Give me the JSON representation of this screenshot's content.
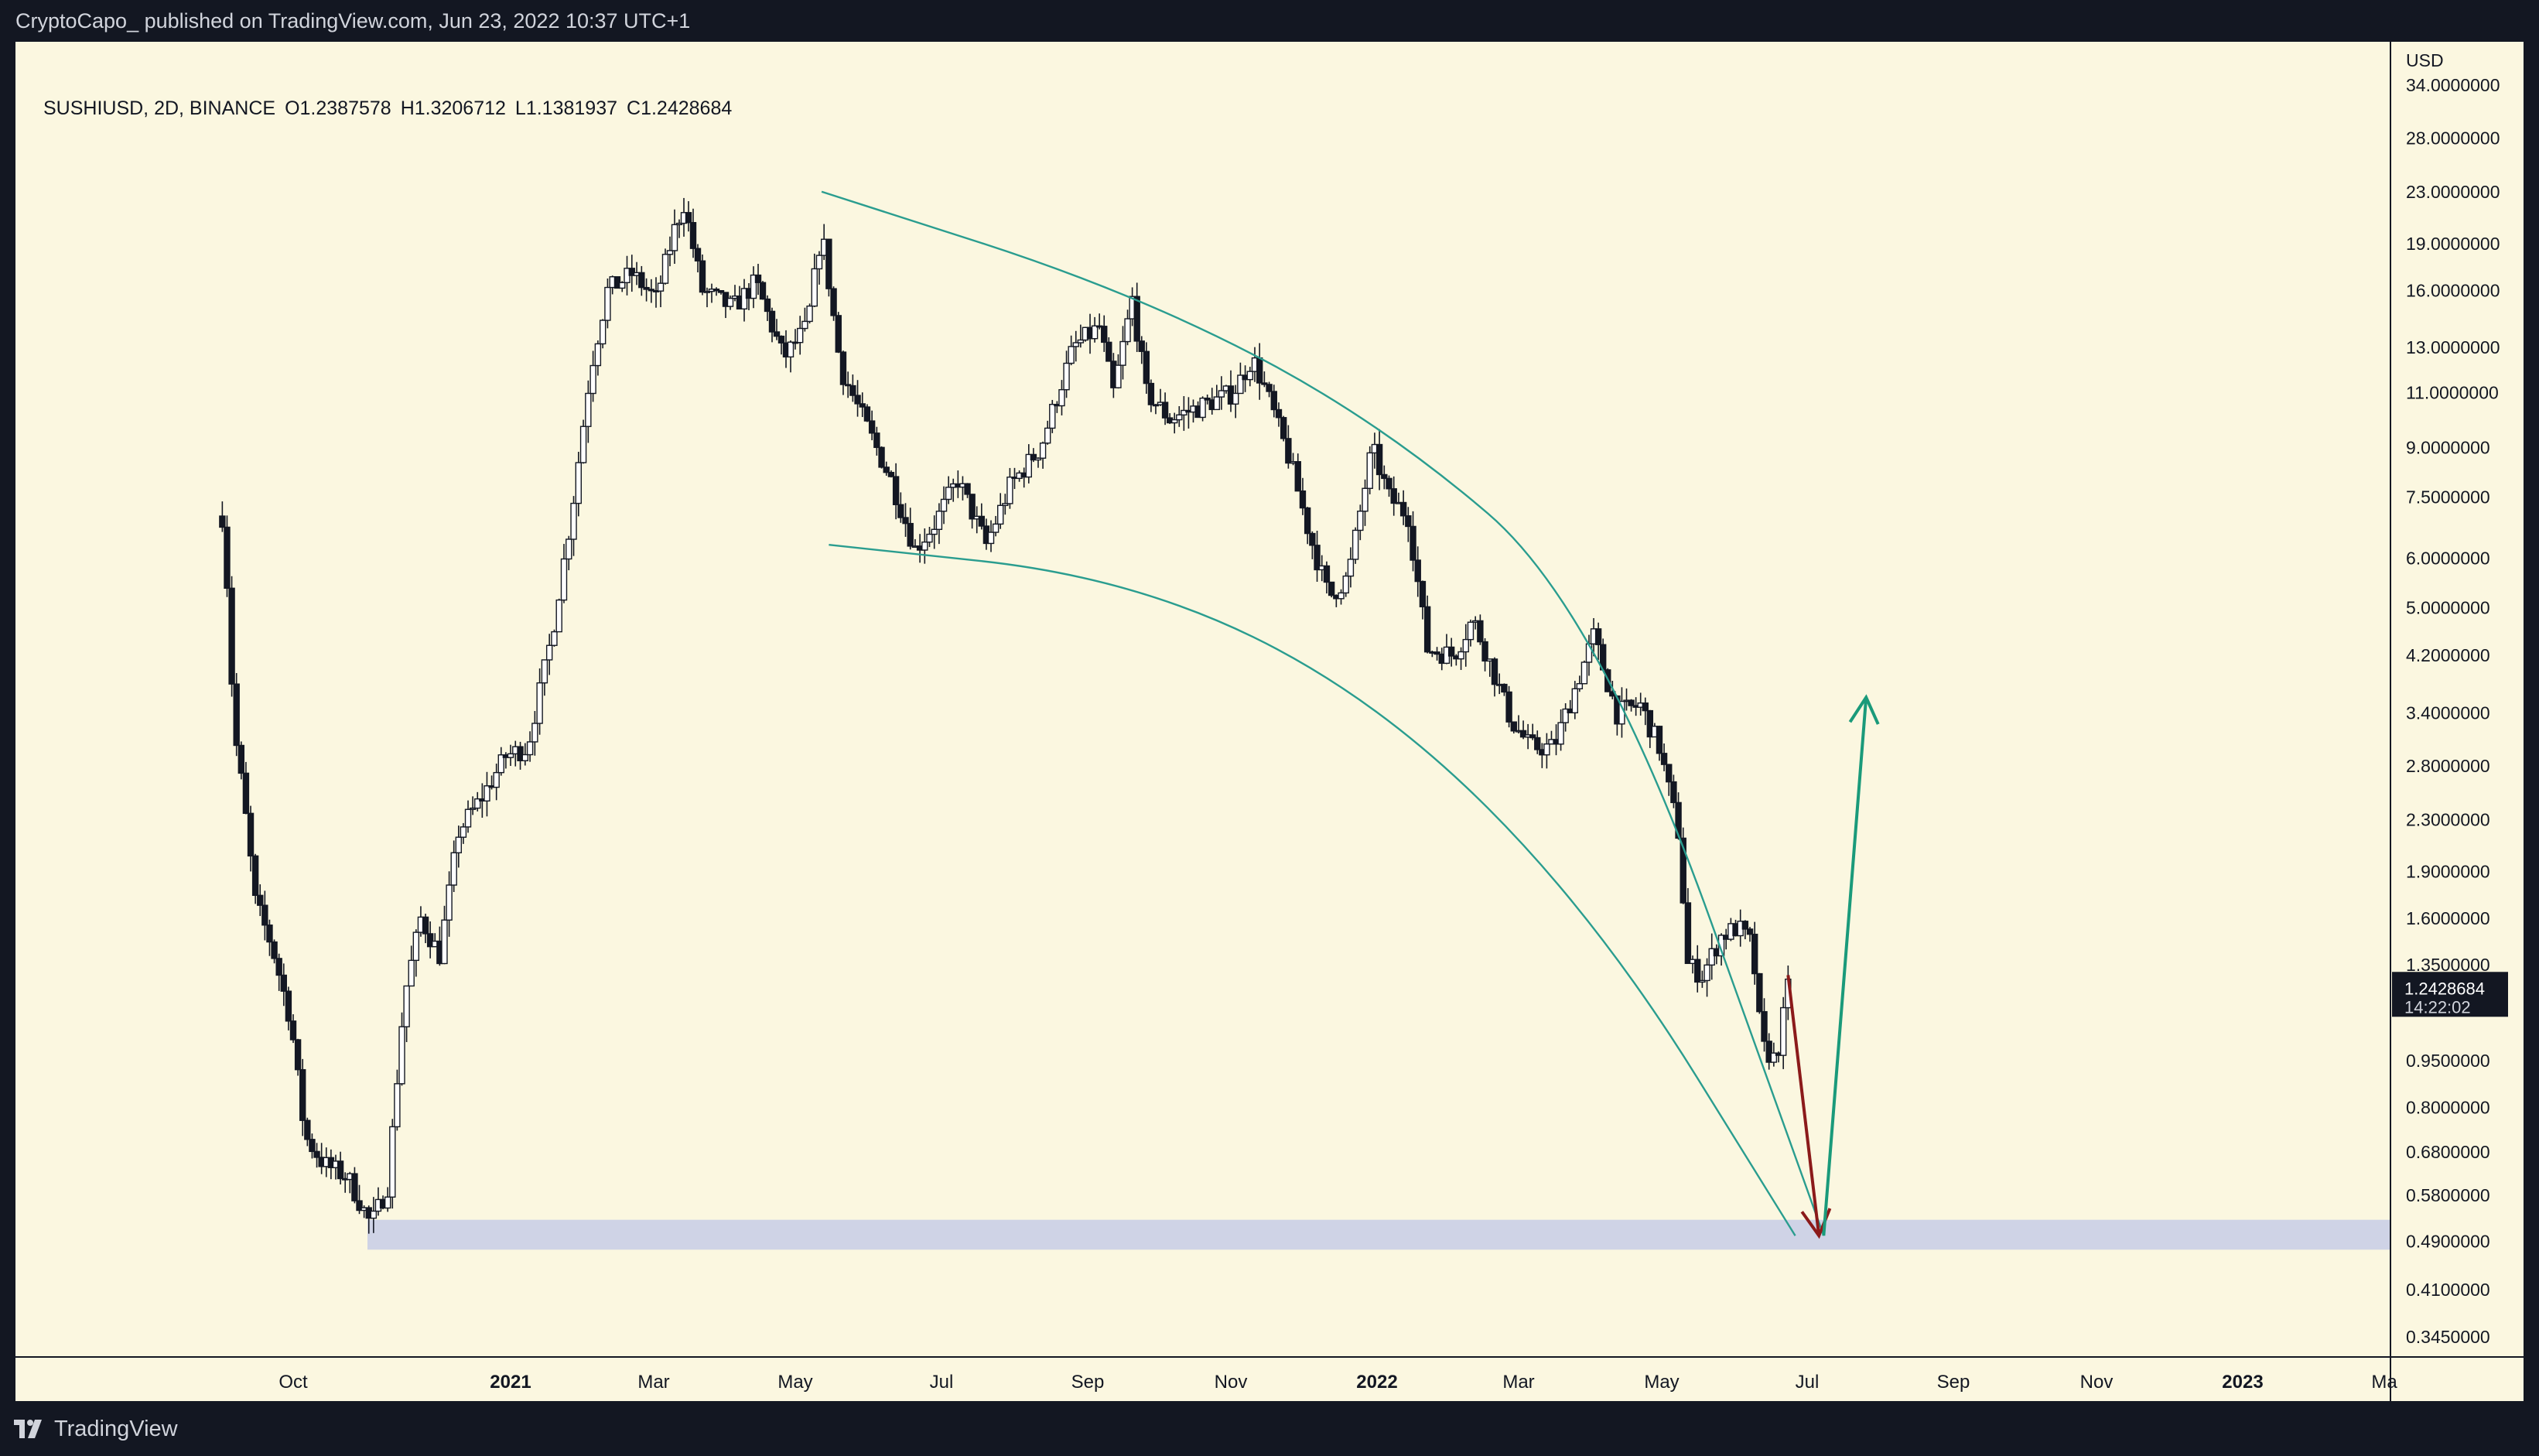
{
  "header": {
    "published_text": "CryptoCapo_ published on TradingView.com, Jun 23, 2022 10:37 UTC+1"
  },
  "legend": {
    "symbol": "SUSHIUSD, 2D, BINANCE",
    "open": "O1.2387578",
    "high": "H1.3206712",
    "low": "L1.1381937",
    "close": "C1.2428684"
  },
  "footer": {
    "brand": "TradingView",
    "logo_icon": "tradingview-logo-icon"
  },
  "colors": {
    "background": "#fbf7e0",
    "frame": "#131722",
    "candle_up": "#ffffff",
    "candle_down": "#131722",
    "channel": "#2a9d8f",
    "support_zone": "#c7cde6",
    "arrow_down": "#8b1a1a",
    "arrow_up": "#1a9a7a"
  },
  "chart_data": {
    "type": "candlestick",
    "symbol": "SUSHIUSD",
    "interval": "2D",
    "exchange": "BINANCE",
    "scale": "log",
    "currency": "USD",
    "y_ticks": [
      "34.0000000",
      "28.0000000",
      "23.0000000",
      "19.0000000",
      "16.0000000",
      "13.0000000",
      "11.0000000",
      "9.0000000",
      "7.5000000",
      "6.0000000",
      "5.0000000",
      "4.2000000",
      "3.4000000",
      "2.8000000",
      "2.3000000",
      "1.9000000",
      "1.6000000",
      "1.3500000",
      "0.9500000",
      "0.8000000",
      "0.6800000",
      "0.5800000",
      "0.4900000",
      "0.4100000",
      "0.3450000"
    ],
    "x_ticks": [
      {
        "label": "Oct",
        "bold": false
      },
      {
        "label": "2021",
        "bold": true
      },
      {
        "label": "Mar",
        "bold": false
      },
      {
        "label": "May",
        "bold": false
      },
      {
        "label": "Jul",
        "bold": false
      },
      {
        "label": "Sep",
        "bold": false
      },
      {
        "label": "Nov",
        "bold": false
      },
      {
        "label": "2022",
        "bold": true
      },
      {
        "label": "Mar",
        "bold": false
      },
      {
        "label": "May",
        "bold": false
      },
      {
        "label": "Jul",
        "bold": false
      },
      {
        "label": "Sep",
        "bold": false
      },
      {
        "label": "Nov",
        "bold": false
      },
      {
        "label": "2023",
        "bold": true
      },
      {
        "label": "Ma",
        "bold": false
      }
    ],
    "last_price": {
      "value": "1.2428684",
      "countdown": "14:22:02"
    },
    "price_path": [
      [
        "2020-09-01",
        7.0
      ],
      [
        "2020-09-03",
        5.5
      ],
      [
        "2020-09-06",
        3.2
      ],
      [
        "2020-09-10",
        2.5
      ],
      [
        "2020-09-15",
        1.7
      ],
      [
        "2020-09-22",
        1.45
      ],
      [
        "2020-09-30",
        1.1
      ],
      [
        "2020-10-06",
        0.72
      ],
      [
        "2020-10-14",
        0.65
      ],
      [
        "2020-10-24",
        0.62
      ],
      [
        "2020-11-03",
        0.52
      ],
      [
        "2020-11-10",
        0.6
      ],
      [
        "2020-11-17",
        1.2
      ],
      [
        "2020-11-24",
        1.6
      ],
      [
        "2020-12-02",
        1.4
      ],
      [
        "2020-12-10",
        2.2
      ],
      [
        "2020-12-20",
        2.5
      ],
      [
        "2020-12-30",
        2.9
      ],
      [
        "2021-01-08",
        3.0
      ],
      [
        "2021-01-18",
        4.5
      ],
      [
        "2021-01-26",
        7.0
      ],
      [
        "2021-02-03",
        12.0
      ],
      [
        "2021-02-10",
        16.0
      ],
      [
        "2021-02-20",
        17.0
      ],
      [
        "2021-03-02",
        15.5
      ],
      [
        "2021-03-10",
        20.0
      ],
      [
        "2021-03-14",
        22.0
      ],
      [
        "2021-03-22",
        16.0
      ],
      [
        "2021-04-04",
        15.0
      ],
      [
        "2021-04-14",
        16.5
      ],
      [
        "2021-04-26",
        12.5
      ],
      [
        "2021-05-06",
        14.0
      ],
      [
        "2021-05-12",
        20.0
      ],
      [
        "2021-05-20",
        12.0
      ],
      [
        "2021-06-01",
        9.5
      ],
      [
        "2021-06-10",
        8.0
      ],
      [
        "2021-06-20",
        6.2
      ],
      [
        "2021-06-28",
        6.8
      ],
      [
        "2021-07-08",
        8.0
      ],
      [
        "2021-07-20",
        6.3
      ],
      [
        "2021-07-30",
        7.8
      ],
      [
        "2021-08-12",
        9.0
      ],
      [
        "2021-08-26",
        13.0
      ],
      [
        "2021-09-06",
        14.0
      ],
      [
        "2021-09-12",
        11.0
      ],
      [
        "2021-09-20",
        15.5
      ],
      [
        "2021-09-26",
        11.0
      ],
      [
        "2021-10-06",
        10.0
      ],
      [
        "2021-10-20",
        10.5
      ],
      [
        "2021-11-02",
        11.0
      ],
      [
        "2021-11-10",
        12.5
      ],
      [
        "2021-11-16",
        11.0
      ],
      [
        "2021-11-26",
        8.5
      ],
      [
        "2021-12-04",
        6.5
      ],
      [
        "2021-12-12",
        5.2
      ],
      [
        "2021-12-20",
        5.6
      ],
      [
        "2021-12-30",
        9.0
      ],
      [
        "2022-01-06",
        7.5
      ],
      [
        "2022-01-14",
        7.0
      ],
      [
        "2022-01-22",
        4.3
      ],
      [
        "2022-02-02",
        4.2
      ],
      [
        "2022-02-10",
        4.8
      ],
      [
        "2022-02-18",
        4.0
      ],
      [
        "2022-02-26",
        3.3
      ],
      [
        "2022-03-06",
        3.0
      ],
      [
        "2022-03-16",
        3.0
      ],
      [
        "2022-03-26",
        3.8
      ],
      [
        "2022-04-02",
        4.5
      ],
      [
        "2022-04-12",
        3.4
      ],
      [
        "2022-04-22",
        3.5
      ],
      [
        "2022-04-30",
        3.0
      ],
      [
        "2022-05-08",
        2.2
      ],
      [
        "2022-05-12",
        1.35
      ],
      [
        "2022-05-18",
        1.3
      ],
      [
        "2022-05-26",
        1.5
      ],
      [
        "2022-06-02",
        1.55
      ],
      [
        "2022-06-08",
        1.45
      ],
      [
        "2022-06-12",
        1.0
      ],
      [
        "2022-06-18",
        0.95
      ],
      [
        "2022-06-23",
        1.24
      ]
    ],
    "drawings": {
      "support_zone": [
        0.475,
        0.53
      ],
      "channel_upper": [
        [
          "2021-05-12",
          23.0
        ],
        [
          "2021-09-19",
          16.0
        ],
        [
          "2022-01-01",
          10.0
        ],
        [
          "2022-04-04",
          5.0
        ],
        [
          "2022-07-08",
          0.5
        ]
      ],
      "channel_lower": [
        [
          "2021-05-15",
          6.3
        ],
        [
          "2021-09-19",
          5.6
        ],
        [
          "2022-01-01",
          3.6
        ],
        [
          "2022-04-04",
          1.6
        ],
        [
          "2022-06-26",
          0.5
        ]
      ],
      "arrow_down": [
        [
          "2022-06-23",
          1.3
        ],
        [
          "2022-07-06",
          0.5
        ]
      ],
      "arrow_up": [
        [
          "2022-07-08",
          0.5
        ],
        [
          "2022-07-26",
          3.6
        ]
      ]
    }
  }
}
